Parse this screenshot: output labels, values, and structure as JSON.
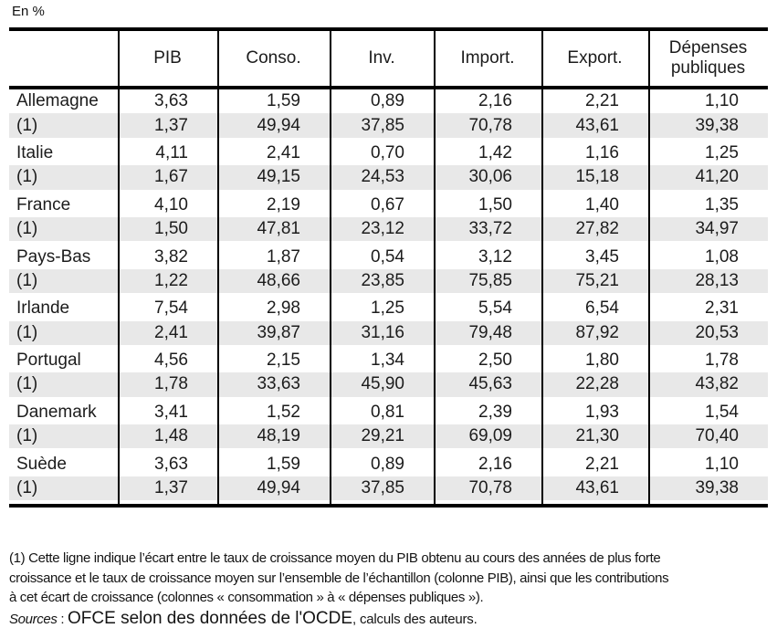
{
  "unit_label": "En %",
  "table": {
    "headers": [
      "",
      "PIB",
      "Conso.",
      "Inv.",
      "Import.",
      "Export.",
      "Dépenses publiques"
    ],
    "rows": [
      {
        "label": "Allemagne",
        "shaded": false,
        "values": [
          "3,63",
          "1,59",
          "0,89",
          "2,16",
          "2,21",
          "1,10"
        ]
      },
      {
        "label": "(1)",
        "shaded": true,
        "values": [
          "1,37",
          "49,94",
          "37,85",
          "70,78",
          "43,61",
          "39,38"
        ]
      },
      {
        "label": "Italie",
        "shaded": false,
        "values": [
          "4,11",
          "2,41",
          "0,70",
          "1,42",
          "1,16",
          "1,25"
        ]
      },
      {
        "label": "(1)",
        "shaded": true,
        "values": [
          "1,67",
          "49,15",
          "24,53",
          "30,06",
          "15,18",
          "41,20"
        ]
      },
      {
        "label": "France",
        "shaded": false,
        "values": [
          "4,10",
          "2,19",
          "0,67",
          "1,50",
          "1,40",
          "1,35"
        ]
      },
      {
        "label": "(1)",
        "shaded": true,
        "values": [
          "1,50",
          "47,81",
          "23,12",
          "33,72",
          "27,82",
          "34,97"
        ]
      },
      {
        "label": "Pays-Bas",
        "shaded": false,
        "values": [
          "3,82",
          "1,87",
          "0,54",
          "3,12",
          "3,45",
          "1,08"
        ]
      },
      {
        "label": "(1)",
        "shaded": true,
        "values": [
          "1,22",
          "48,66",
          "23,85",
          "75,85",
          "75,21",
          "28,13"
        ]
      },
      {
        "label": "Irlande",
        "shaded": false,
        "values": [
          "7,54",
          "2,98",
          "1,25",
          "5,54",
          "6,54",
          "2,31"
        ]
      },
      {
        "label": "(1)",
        "shaded": true,
        "values": [
          "2,41",
          "39,87",
          "31,16",
          "79,48",
          "87,92",
          "20,53"
        ]
      },
      {
        "label": "Portugal",
        "shaded": false,
        "values": [
          "4,56",
          "2,15",
          "1,34",
          "2,50",
          "1,80",
          "1,78"
        ]
      },
      {
        "label": "(1)",
        "shaded": true,
        "values": [
          "1,78",
          "33,63",
          "45,90",
          "45,63",
          "22,28",
          "43,82"
        ]
      },
      {
        "label": "Danemark",
        "shaded": false,
        "values": [
          "3,41",
          "1,52",
          "0,81",
          "2,39",
          "1,93",
          "1,54"
        ]
      },
      {
        "label": "(1)",
        "shaded": true,
        "values": [
          "1,48",
          "48,19",
          "29,21",
          "69,09",
          "21,30",
          "70,40"
        ]
      },
      {
        "label": "Suède",
        "shaded": false,
        "values": [
          "3,63",
          "1,59",
          "0,89",
          "2,16",
          "2,21",
          "1,10"
        ]
      },
      {
        "label": "(1)",
        "shaded": true,
        "values": [
          "1,37",
          "49,94",
          "37,85",
          "70,78",
          "43,61",
          "39,38"
        ]
      }
    ]
  },
  "footnote": {
    "lines": [
      "(1) Cette ligne indique l’écart entre le taux de croissance moyen du PIB obtenu au cours des années de plus forte",
      "croissance et le taux de croissance moyen sur l’ensemble de l’échantillon (colonne PIB), ainsi que les contributions",
      "à cet écart de croissance (colonnes « consommation » à « dépenses publiques »)."
    ],
    "sources_label": "Sources",
    "sources_separator": " : ",
    "sources_main": "OFCE selon des données de l'OCDE",
    "sources_tail": ", calculs des auteurs."
  },
  "chart_data": {
    "type": "table",
    "title": "En %",
    "columns": [
      "PIB",
      "Conso.",
      "Inv.",
      "Import.",
      "Export.",
      "Dépenses publiques"
    ],
    "row_groups": [
      {
        "country": "Allemagne",
        "main": [
          3.63,
          1.59,
          0.89,
          2.16,
          2.21,
          1.1
        ],
        "ecart": [
          1.37,
          49.94,
          37.85,
          70.78,
          43.61,
          39.38
        ]
      },
      {
        "country": "Italie",
        "main": [
          4.11,
          2.41,
          0.7,
          1.42,
          1.16,
          1.25
        ],
        "ecart": [
          1.67,
          49.15,
          24.53,
          30.06,
          15.18,
          41.2
        ]
      },
      {
        "country": "France",
        "main": [
          4.1,
          2.19,
          0.67,
          1.5,
          1.4,
          1.35
        ],
        "ecart": [
          1.5,
          47.81,
          23.12,
          33.72,
          27.82,
          34.97
        ]
      },
      {
        "country": "Pays-Bas",
        "main": [
          3.82,
          1.87,
          0.54,
          3.12,
          3.45,
          1.08
        ],
        "ecart": [
          1.22,
          48.66,
          23.85,
          75.85,
          75.21,
          28.13
        ]
      },
      {
        "country": "Irlande",
        "main": [
          7.54,
          2.98,
          1.25,
          5.54,
          6.54,
          2.31
        ],
        "ecart": [
          2.41,
          39.87,
          31.16,
          79.48,
          87.92,
          20.53
        ]
      },
      {
        "country": "Portugal",
        "main": [
          4.56,
          2.15,
          1.34,
          2.5,
          1.8,
          1.78
        ],
        "ecart": [
          1.78,
          33.63,
          45.9,
          45.63,
          22.28,
          43.82
        ]
      },
      {
        "country": "Danemark",
        "main": [
          3.41,
          1.52,
          0.81,
          2.39,
          1.93,
          1.54
        ],
        "ecart": [
          1.48,
          48.19,
          29.21,
          69.09,
          21.3,
          70.4
        ]
      },
      {
        "country": "Suède",
        "main": [
          3.63,
          1.59,
          0.89,
          2.16,
          2.21,
          1.1
        ],
        "ecart": [
          1.37,
          49.94,
          37.85,
          70.78,
          43.61,
          39.38
        ]
      }
    ]
  },
  "colors": {
    "shaded_row": "#e8e8e8",
    "border": "#000000",
    "text": "#1c1c1c"
  }
}
